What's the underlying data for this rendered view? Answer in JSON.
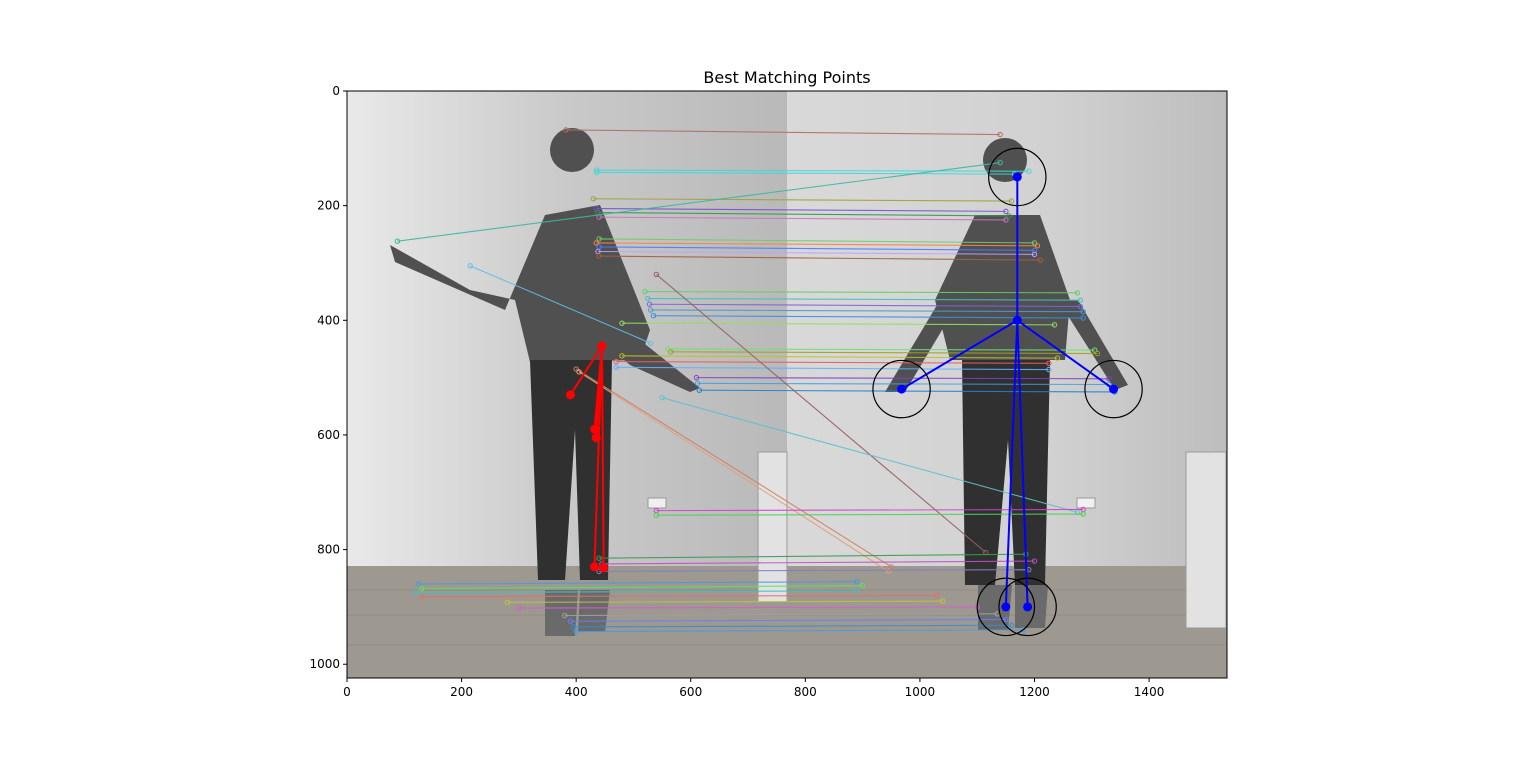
{
  "chart_data": {
    "type": "scatter",
    "title": "Best Matching Points",
    "xlabel": "",
    "ylabel": "",
    "xlim": [
      0,
      1536
    ],
    "ylim": [
      1024,
      0
    ],
    "x_ticks": [
      0,
      200,
      400,
      600,
      800,
      1000,
      1200,
      1400
    ],
    "y_ticks": [
      0,
      200,
      400,
      600,
      800,
      1000
    ],
    "grid": false,
    "background": "grayscale photo: two side-by-side views of a standing person (left: arm raised, right: arms down)",
    "matches": [
      {
        "x1": 382,
        "y1": 68,
        "x2": 1140,
        "y2": 76,
        "color": "#b07060"
      },
      {
        "x1": 436,
        "y1": 138,
        "x2": 1190,
        "y2": 140,
        "color": "#40d8d8"
      },
      {
        "x1": 436,
        "y1": 142,
        "x2": 1165,
        "y2": 145,
        "color": "#40d8d8"
      },
      {
        "x1": 430,
        "y1": 188,
        "x2": 1160,
        "y2": 192,
        "color": "#a0a040"
      },
      {
        "x1": 435,
        "y1": 205,
        "x2": 1150,
        "y2": 210,
        "color": "#7a4fd0"
      },
      {
        "x1": 438,
        "y1": 212,
        "x2": 1155,
        "y2": 218,
        "color": "#2e9a4e"
      },
      {
        "x1": 440,
        "y1": 220,
        "x2": 1150,
        "y2": 225,
        "color": "#d070c0"
      },
      {
        "x1": 88,
        "y1": 262,
        "x2": 1140,
        "y2": 125,
        "color": "#3ab8a0"
      },
      {
        "x1": 440,
        "y1": 258,
        "x2": 1200,
        "y2": 265,
        "color": "#6ad06a"
      },
      {
        "x1": 435,
        "y1": 265,
        "x2": 1205,
        "y2": 270,
        "color": "#ff8040"
      },
      {
        "x1": 440,
        "y1": 272,
        "x2": 1200,
        "y2": 278,
        "color": "#4080ff"
      },
      {
        "x1": 438,
        "y1": 280,
        "x2": 1200,
        "y2": 285,
        "color": "#c0a0ff"
      },
      {
        "x1": 440,
        "y1": 288,
        "x2": 1210,
        "y2": 295,
        "color": "#a06040"
      },
      {
        "x1": 215,
        "y1": 305,
        "x2": 530,
        "y2": 440,
        "color": "#60c0e0"
      },
      {
        "x1": 520,
        "y1": 350,
        "x2": 1275,
        "y2": 352,
        "color": "#60d060"
      },
      {
        "x1": 525,
        "y1": 362,
        "x2": 1280,
        "y2": 365,
        "color": "#40c0c0"
      },
      {
        "x1": 528,
        "y1": 372,
        "x2": 1280,
        "y2": 376,
        "color": "#8060e0"
      },
      {
        "x1": 530,
        "y1": 382,
        "x2": 1285,
        "y2": 385,
        "color": "#4a9ad0"
      },
      {
        "x1": 535,
        "y1": 392,
        "x2": 1285,
        "y2": 396,
        "color": "#3a90e0"
      },
      {
        "x1": 480,
        "y1": 405,
        "x2": 1235,
        "y2": 408,
        "color": "#90e060"
      },
      {
        "x1": 560,
        "y1": 450,
        "x2": 1305,
        "y2": 452,
        "color": "#70e070"
      },
      {
        "x1": 565,
        "y1": 455,
        "x2": 1310,
        "y2": 458,
        "color": "#a0a020"
      },
      {
        "x1": 480,
        "y1": 462,
        "x2": 1240,
        "y2": 466,
        "color": "#c0c020"
      },
      {
        "x1": 470,
        "y1": 472,
        "x2": 1225,
        "y2": 475,
        "color": "#e06060"
      },
      {
        "x1": 470,
        "y1": 482,
        "x2": 1225,
        "y2": 486,
        "color": "#60b0ff"
      },
      {
        "x1": 610,
        "y1": 500,
        "x2": 1330,
        "y2": 502,
        "color": "#8040c0"
      },
      {
        "x1": 612,
        "y1": 510,
        "x2": 1330,
        "y2": 512,
        "color": "#40a0e0"
      },
      {
        "x1": 615,
        "y1": 522,
        "x2": 1340,
        "y2": 525,
        "color": "#2080d0"
      },
      {
        "x1": 540,
        "y1": 320,
        "x2": 1115,
        "y2": 805,
        "color": "#906060"
      },
      {
        "x1": 400,
        "y1": 485,
        "x2": 950,
        "y2": 830,
        "color": "#d08060"
      },
      {
        "x1": 405,
        "y1": 490,
        "x2": 945,
        "y2": 838,
        "color": "#e0a080"
      },
      {
        "x1": 550,
        "y1": 535,
        "x2": 1275,
        "y2": 735,
        "color": "#60c0d0"
      },
      {
        "x1": 540,
        "y1": 732,
        "x2": 1285,
        "y2": 730,
        "color": "#d040d0"
      },
      {
        "x1": 540,
        "y1": 740,
        "x2": 1285,
        "y2": 738,
        "color": "#50d050"
      },
      {
        "x1": 440,
        "y1": 815,
        "x2": 1185,
        "y2": 808,
        "color": "#3a9a50"
      },
      {
        "x1": 445,
        "y1": 825,
        "x2": 1200,
        "y2": 820,
        "color": "#c050c0"
      },
      {
        "x1": 440,
        "y1": 838,
        "x2": 1190,
        "y2": 835,
        "color": "#8080c0"
      },
      {
        "x1": 125,
        "y1": 860,
        "x2": 890,
        "y2": 856,
        "color": "#4a9ae0"
      },
      {
        "x1": 130,
        "y1": 868,
        "x2": 900,
        "y2": 863,
        "color": "#60e060"
      },
      {
        "x1": 120,
        "y1": 875,
        "x2": 890,
        "y2": 872,
        "color": "#40c0c0"
      },
      {
        "x1": 130,
        "y1": 882,
        "x2": 1030,
        "y2": 880,
        "color": "#e07070"
      },
      {
        "x1": 280,
        "y1": 892,
        "x2": 1040,
        "y2": 890,
        "color": "#c0c040"
      },
      {
        "x1": 300,
        "y1": 902,
        "x2": 1100,
        "y2": 900,
        "color": "#d060d0"
      },
      {
        "x1": 380,
        "y1": 915,
        "x2": 1135,
        "y2": 912,
        "color": "#a0a0a0"
      },
      {
        "x1": 390,
        "y1": 925,
        "x2": 1150,
        "y2": 922,
        "color": "#6080ff"
      },
      {
        "x1": 395,
        "y1": 935,
        "x2": 1160,
        "y2": 932,
        "color": "#3a8ad0"
      },
      {
        "x1": 400,
        "y1": 943,
        "x2": 1180,
        "y2": 940,
        "color": "#4a9ae0"
      }
    ],
    "series": [
      {
        "color": "#ff0000",
        "points": [
          [
            390,
            530
          ],
          [
            445,
            445
          ],
          [
            432,
            590
          ],
          [
            435,
            605
          ],
          [
            445,
            445
          ],
          [
            432,
            830
          ],
          [
            448,
            832
          ],
          [
            445,
            445
          ]
        ],
        "circles": []
      },
      {
        "color": "#0000ff",
        "points": [
          [
            1170,
            150
          ],
          [
            1170,
            400
          ],
          [
            968,
            520
          ],
          [
            1170,
            400
          ],
          [
            1338,
            520
          ],
          [
            1170,
            400
          ],
          [
            1150,
            900
          ],
          [
            1170,
            400
          ],
          [
            1188,
            900
          ]
        ],
        "circles": [
          [
            1170,
            150,
            50
          ],
          [
            968,
            520,
            50
          ],
          [
            1338,
            520,
            50
          ],
          [
            1150,
            900,
            50
          ],
          [
            1188,
            900,
            50
          ]
        ]
      }
    ]
  }
}
